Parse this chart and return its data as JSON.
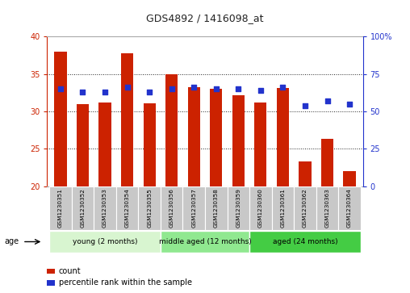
{
  "title": "GDS4892 / 1416098_at",
  "samples": [
    "GSM1230351",
    "GSM1230352",
    "GSM1230353",
    "GSM1230354",
    "GSM1230355",
    "GSM1230356",
    "GSM1230357",
    "GSM1230358",
    "GSM1230359",
    "GSM1230360",
    "GSM1230361",
    "GSM1230362",
    "GSM1230363",
    "GSM1230364"
  ],
  "counts": [
    38.0,
    31.0,
    31.2,
    37.8,
    31.1,
    35.0,
    33.2,
    33.0,
    32.2,
    31.2,
    33.1,
    23.3,
    26.3,
    22.0
  ],
  "percentile_ranks": [
    65,
    63,
    63,
    66,
    63,
    65,
    66,
    65,
    65,
    64,
    66,
    54,
    57,
    55
  ],
  "ymin": 20,
  "ymax": 40,
  "yticks": [
    20,
    25,
    30,
    35,
    40
  ],
  "y2min": 0,
  "y2max": 100,
  "y2ticks": [
    0,
    25,
    50,
    75,
    100
  ],
  "y2ticklabels": [
    "0",
    "25",
    "50",
    "75",
    "100%"
  ],
  "bar_color": "#cc2200",
  "dot_color": "#2233cc",
  "bar_width": 0.55,
  "group_labels": [
    "young (2 months)",
    "middle aged (12 months)",
    "aged (24 months)"
  ],
  "group_ranges": [
    [
      0,
      4
    ],
    [
      5,
      8
    ],
    [
      9,
      13
    ]
  ],
  "group_colors": [
    "#d8f5d0",
    "#90e890",
    "#44cc44"
  ],
  "age_label": "age",
  "legend_count": "count",
  "legend_percentile": "percentile rank within the sample",
  "title_color": "#222222",
  "axis_left_color": "#cc2200",
  "axis_right_color": "#2233cc",
  "grid_color": "#000000",
  "sample_bg_color": "#c8c8c8",
  "plot_bg_color": "#ffffff"
}
